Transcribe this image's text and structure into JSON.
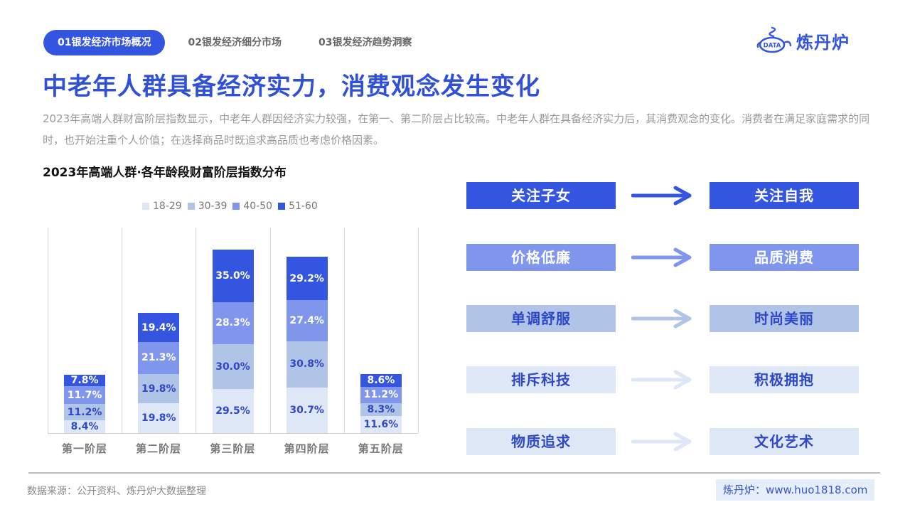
{
  "tabs": [
    {
      "label": "01银发经济市场概况",
      "active": true
    },
    {
      "label": "02银发经济细分市场",
      "active": false
    },
    {
      "label": "03银发经济趋势洞察",
      "active": false
    }
  ],
  "logo": {
    "badge": "DATA",
    "text": "炼丹炉",
    "icon": "alchemy-pot-icon"
  },
  "page_title": "中老年人群具备经济实力，消费观念发生变化",
  "description": "2023年高端人群财富阶层指数显示，中老年人群因经济实力较强，在第一、第二阶层占比较高。中老年人群在具备经济实力后，其消费观念的变化。消费者在满足家庭需求的同时，也开始注重个人价值；在选择商品时既追求高品质也考虑价格因素。",
  "colors": {
    "accent": "#3355e0",
    "s18_29": "#dde7f5",
    "s30_39": "#b0c4e8",
    "s40_50": "#7f96ec",
    "s51_60": "#3355e0",
    "label_dark": "#2f48c8",
    "label_light": "#ffffff"
  },
  "chart_data": {
    "type": "bar",
    "stacked": true,
    "title": "2023年高端人群·各年龄段财富阶层指数分布",
    "xlabel": "",
    "ylabel": "",
    "categories": [
      "第一阶层",
      "第二阶层",
      "第三阶层",
      "第四阶层",
      "第五阶层"
    ],
    "series": [
      {
        "name": "18-29",
        "values": [
          8.4,
          19.8,
          29.5,
          30.7,
          11.6
        ]
      },
      {
        "name": "30-39",
        "values": [
          11.2,
          19.8,
          30.0,
          30.8,
          8.3
        ]
      },
      {
        "name": "40-50",
        "values": [
          11.7,
          21.3,
          28.3,
          27.4,
          11.2
        ]
      },
      {
        "name": "51-60",
        "values": [
          7.8,
          19.4,
          35.0,
          29.2,
          8.6
        ]
      }
    ],
    "value_format": "percent_1dp",
    "legend_position": "top",
    "grid": "vertical separators between categories",
    "ylim": [
      0,
      130
    ]
  },
  "legend": [
    {
      "label": "18-29"
    },
    {
      "label": "30-39"
    },
    {
      "label": "40-50"
    },
    {
      "label": "51-60"
    }
  ],
  "bar_labels": [
    [
      "8.4%",
      "11.2%",
      "11.7%",
      "7.8%"
    ],
    [
      "19.8%",
      "19.8%",
      "21.3%",
      "19.4%"
    ],
    [
      "29.5%",
      "30.0%",
      "28.3%",
      "35.0%"
    ],
    [
      "30.7%",
      "30.8%",
      "27.4%",
      "29.2%"
    ],
    [
      "11.6%",
      "8.3%",
      "11.2%",
      "8.6%"
    ]
  ],
  "shifts": [
    {
      "from": "关注子女",
      "to": "关注自我"
    },
    {
      "from": "价格低廉",
      "to": "品质消费"
    },
    {
      "from": "单调舒服",
      "to": "时尚美丽"
    },
    {
      "from": "排斥科技",
      "to": "积极拥抱"
    },
    {
      "from": "物质追求",
      "to": "文化艺术"
    }
  ],
  "footer": {
    "source": "数据来源：公开资料、炼丹炉大数据整理",
    "site": "炼丹炉：www.huo1818.com"
  }
}
